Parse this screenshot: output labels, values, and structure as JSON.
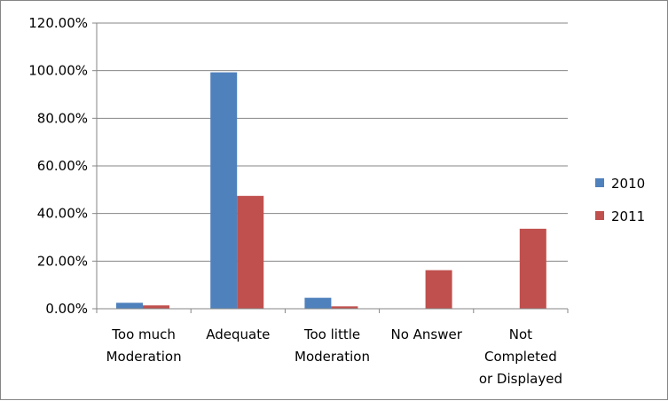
{
  "chart_data": {
    "type": "bar",
    "title": "",
    "xlabel": "",
    "ylabel": "",
    "categories": [
      [
        "Too much",
        "Moderation"
      ],
      [
        "Adequate"
      ],
      [
        "Too little",
        "Moderation"
      ],
      [
        "No Answer"
      ],
      [
        "Not",
        "Completed",
        "or Displayed"
      ]
    ],
    "series": [
      {
        "name": "2010",
        "color": "#4F81BD",
        "values": [
          2.5,
          99.3,
          4.6,
          0,
          0
        ]
      },
      {
        "name": "2011",
        "color": "#C0504D",
        "values": [
          1.4,
          47.4,
          1.0,
          16.2,
          33.6
        ]
      }
    ],
    "ylim": [
      0,
      120
    ],
    "yticks": [
      0,
      20,
      40,
      60,
      80,
      100,
      120
    ],
    "ytick_labels": [
      "0.00%",
      "20.00%",
      "40.00%",
      "60.00%",
      "80.00%",
      "100.00%",
      "120.00%"
    ],
    "grid": true,
    "legend_position": "right"
  }
}
